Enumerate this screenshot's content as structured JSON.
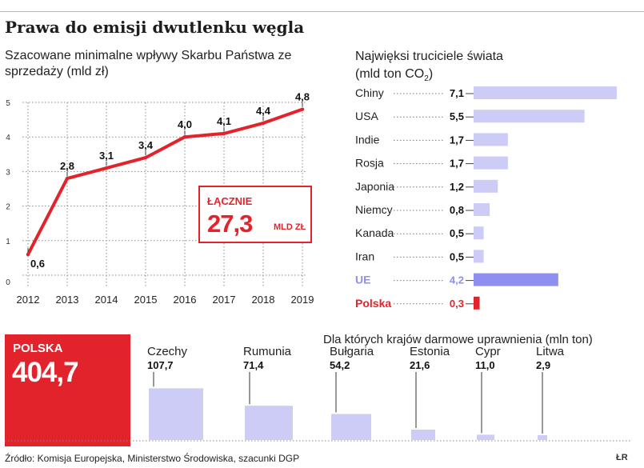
{
  "header": {
    "title": "Prawa do emisji dwutlenku węgla",
    "source": "Źródło: Komisja Europejska, Ministerstwo Środowiska, szacunki DGP",
    "logo": "ŁR"
  },
  "colors": {
    "red": "#e3232b",
    "bar_light": "#ccccf7",
    "bar_eu": "#8f8ff0",
    "eu_text": "#8f8ff0",
    "grid": "#8a8a8a"
  },
  "left_panel": {
    "subtitle": "Szacowane minimalne wpływy Skarbu Państwa ze sprzedaży (mld zł)",
    "total": {
      "label": "ŁĄCZNIE",
      "value": "27,3",
      "unit": "MLD ZŁ"
    }
  },
  "right_panel": {
    "subtitle_main": "Najwięksi truciciele świata",
    "subtitle_unit": "(mld ton CO",
    "subtitle_sub": "2",
    "subtitle_end": ")"
  },
  "bottom_panel": {
    "title": "Dla których krajów darmowe uprawnienia (mln ton)",
    "poland": {
      "label": "POLSKA",
      "value": "404,7"
    }
  },
  "chart_data": [
    {
      "type": "line",
      "title": "Szacowane minimalne wpływy Skarbu Państwa ze sprzedaży (mld zł)",
      "x": [
        "2012",
        "2013",
        "2014",
        "2015",
        "2016",
        "2017",
        "2018",
        "2019"
      ],
      "values": [
        0.6,
        2.8,
        3.1,
        3.4,
        4.0,
        4.1,
        4.4,
        4.8
      ],
      "labels": [
        "0,6",
        "2,8",
        "3,1",
        "3,4",
        "4,0",
        "4,1",
        "4,4",
        "4,8"
      ],
      "y_ticks": [
        "0",
        "1",
        "2",
        "3",
        "4",
        "5"
      ],
      "ylim": [
        0,
        5
      ],
      "grid": "dotted",
      "color": "#e3232b"
    },
    {
      "type": "bar",
      "orientation": "horizontal",
      "title": "Najwięksi truciciele świata (mld ton CO2)",
      "categories": [
        "Chiny",
        "USA",
        "Indie",
        "Rosja",
        "Japonia",
        "Niemcy",
        "Kanada",
        "Iran",
        "UE",
        "Polska"
      ],
      "values": [
        7.1,
        5.5,
        1.7,
        1.7,
        1.2,
        0.8,
        0.5,
        0.5,
        4.2,
        0.3
      ],
      "labels": [
        "7,1",
        "5,5",
        "1,7",
        "1,7",
        "1,2",
        "0,8",
        "0,5",
        "0,5",
        "4,2",
        "0,3"
      ],
      "highlight": {
        "UE": "#8f8ff0",
        "Polska": "#e3232b"
      }
    },
    {
      "type": "bar",
      "title": "Dla których krajów darmowe uprawnienia (mln ton)",
      "categories": [
        "Polska",
        "Czechy",
        "Rumunia",
        "Bułgaria",
        "Estonia",
        "Cypr",
        "Litwa"
      ],
      "values": [
        404.7,
        107.7,
        71.4,
        54.2,
        21.6,
        11.0,
        2.9
      ],
      "labels": [
        "404,7",
        "107,7",
        "71,4",
        "54,2",
        "21,6",
        "11,0",
        "2,9"
      ]
    }
  ]
}
